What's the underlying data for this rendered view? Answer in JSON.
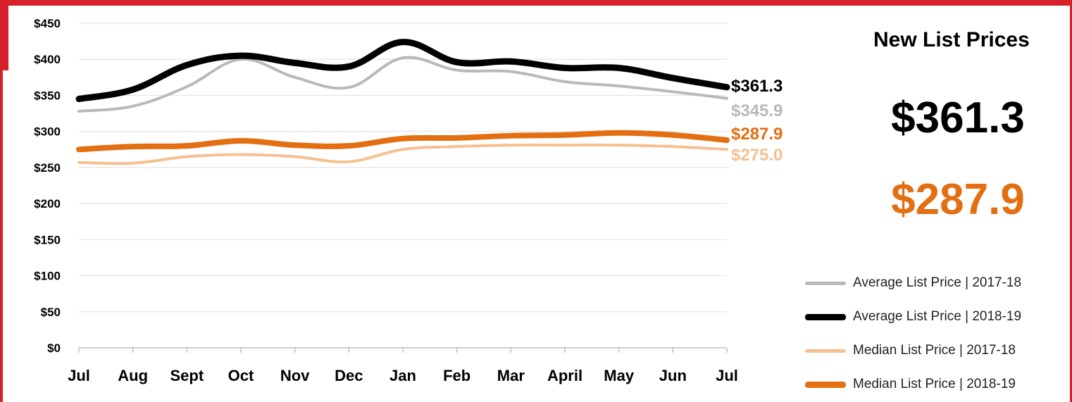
{
  "colors": {
    "frame": "#d6202a",
    "avg_2017": "#b9b9b9",
    "avg_2018": "#000000",
    "median_2017": "#f6c090",
    "median_2018": "#e36f12",
    "grid": "#e4e4e4",
    "axis": "#bfbfbf"
  },
  "panel": {
    "title": "New List Prices",
    "average_value": "$361.3",
    "median_value": "$287.9"
  },
  "chart_data": {
    "type": "line",
    "x": [
      "Jul",
      "Aug",
      "Sept",
      "Oct",
      "Nov",
      "Dec",
      "Jan",
      "Feb",
      "Mar",
      "April",
      "May",
      "Jun",
      "Jul"
    ],
    "ylim": [
      0,
      450
    ],
    "yticks": [
      "$0",
      "$50",
      "$100",
      "$150",
      "$200",
      "$250",
      "$300",
      "$350",
      "$400",
      "$450"
    ],
    "ytick_values": [
      0,
      50,
      100,
      150,
      200,
      250,
      300,
      350,
      400,
      450
    ],
    "grid": true,
    "legend_position": "right",
    "series": [
      {
        "name": "Average List Price | 2017-18",
        "key": "avg_2017",
        "values": [
          328,
          335,
          362,
          400,
          375,
          361,
          402,
          385,
          383,
          369,
          363,
          355,
          345.9
        ],
        "end_label": "$345.9",
        "width": 4
      },
      {
        "name": "Average List Price | 2018-19",
        "key": "avg_2018",
        "values": [
          345,
          358,
          392,
          405,
          395,
          390,
          424,
          396,
          397,
          388,
          388,
          374,
          361.3
        ],
        "end_label": "$361.3",
        "width": 9
      },
      {
        "name": "Median List Price | 2017-18",
        "key": "median_2017",
        "values": [
          257,
          256,
          265,
          268,
          265,
          258,
          275,
          279,
          281,
          281,
          281,
          279,
          275.0
        ],
        "end_label": "$275.0",
        "width": 4
      },
      {
        "name": "Median List Price | 2018-19",
        "key": "median_2018",
        "values": [
          275,
          279,
          280,
          287,
          281,
          280,
          290,
          291,
          294,
          295,
          298,
          295,
          287.9
        ],
        "end_label": "$287.9",
        "width": 8
      }
    ]
  }
}
